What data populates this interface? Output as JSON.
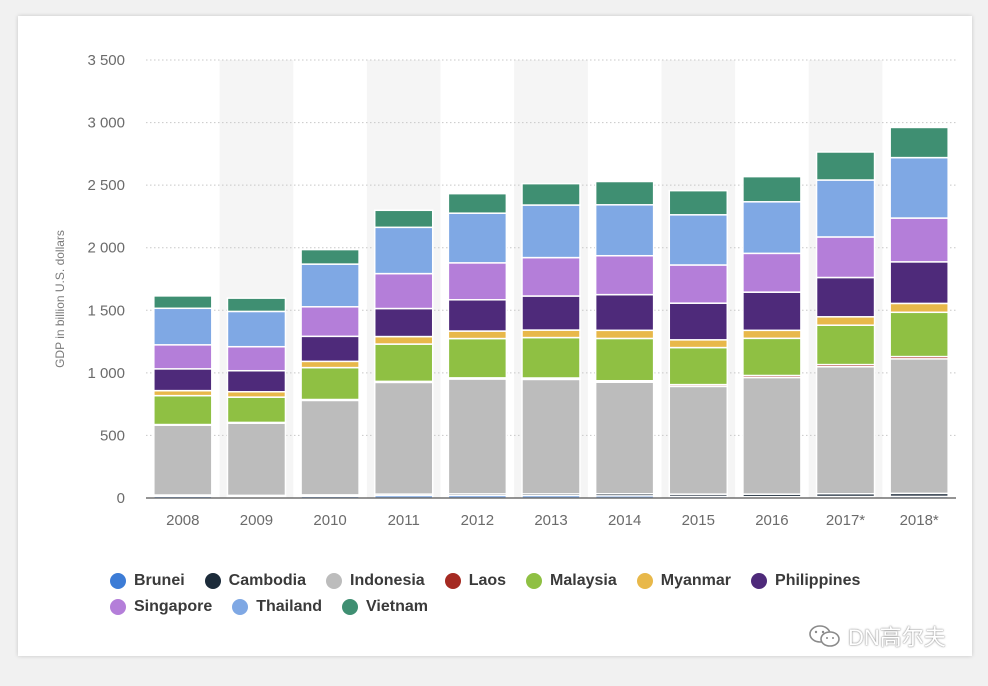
{
  "chart_data": {
    "type": "bar",
    "stacked": true,
    "ylabel": "GDP in billion U.S. dollars",
    "ylim": [
      0,
      3500
    ],
    "yticks": [
      {
        "value": 0,
        "label": "0"
      },
      {
        "value": 500,
        "label": "500"
      },
      {
        "value": 1000,
        "label": "1 000"
      },
      {
        "value": 1500,
        "label": "1 500"
      },
      {
        "value": 2000,
        "label": "2 000"
      },
      {
        "value": 2500,
        "label": "2 500"
      },
      {
        "value": 3000,
        "label": "3 000"
      },
      {
        "value": 3500,
        "label": "3 500"
      }
    ],
    "categories": [
      "2008",
      "2009",
      "2010",
      "2011",
      "2012",
      "2013",
      "2014",
      "2015",
      "2016",
      "2017*",
      "2018*"
    ],
    "series": [
      {
        "name": "Brunei",
        "color": "#3c7cd6",
        "values": [
          14,
          11,
          14,
          18,
          19,
          18,
          17,
          13,
          11,
          12,
          13
        ]
      },
      {
        "name": "Cambodia",
        "color": "#1c2b3a",
        "values": [
          10,
          10,
          11,
          13,
          14,
          15,
          17,
          18,
          20,
          22,
          24
        ]
      },
      {
        "name": "Indonesia",
        "color": "#bcbcbc",
        "values": [
          558,
          577,
          755,
          893,
          918,
          915,
          891,
          861,
          932,
          1015,
          1075
        ]
      },
      {
        "name": "Laos",
        "color": "#a52a22",
        "values": [
          5,
          6,
          7,
          8,
          9,
          11,
          12,
          14,
          16,
          17,
          18
        ]
      },
      {
        "name": "Malaysia",
        "color": "#8fc043",
        "values": [
          231,
          202,
          255,
          298,
          314,
          323,
          338,
          296,
          297,
          315,
          354
        ]
      },
      {
        "name": "Myanmar",
        "color": "#e8b84a",
        "values": [
          40,
          43,
          50,
          60,
          60,
          60,
          65,
          62,
          64,
          67,
          71
        ]
      },
      {
        "name": "Philippines",
        "color": "#4e2a7a",
        "values": [
          174,
          168,
          200,
          224,
          250,
          272,
          285,
          293,
          305,
          314,
          332
        ]
      },
      {
        "name": "Singapore",
        "color": "#b47ed9",
        "values": [
          192,
          192,
          236,
          279,
          295,
          307,
          311,
          305,
          310,
          324,
          350
        ]
      },
      {
        "name": "Thailand",
        "color": "#7fa8e4",
        "values": [
          292,
          282,
          341,
          370,
          397,
          420,
          407,
          401,
          412,
          455,
          483
        ]
      },
      {
        "name": "Vietnam",
        "color": "#3f8f72",
        "values": [
          99,
          106,
          116,
          136,
          156,
          171,
          186,
          193,
          201,
          224,
          241
        ]
      }
    ]
  },
  "watermark": {
    "text": "DN高尔夫"
  }
}
